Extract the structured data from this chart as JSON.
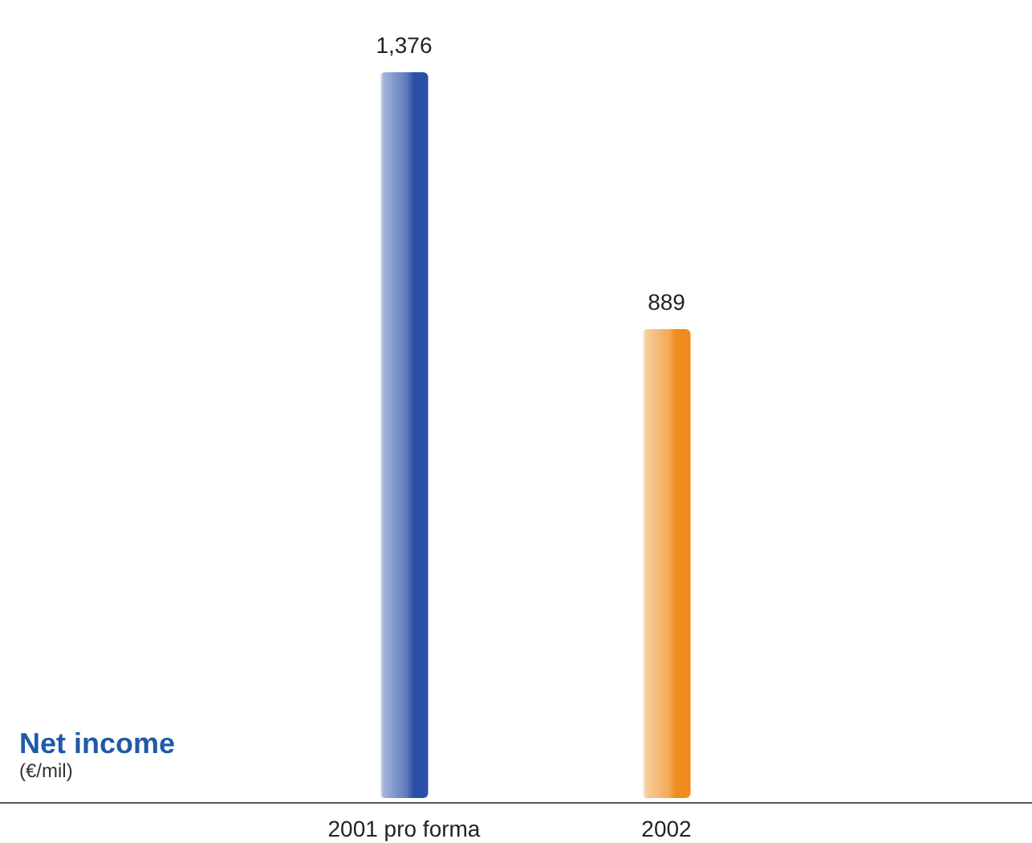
{
  "chart_data": {
    "type": "bar",
    "title": "Net income",
    "subtitle": "(€/mil)",
    "categories": [
      "2001 pro forma",
      "2002"
    ],
    "values": [
      1376,
      889
    ],
    "colors": [
      "#2a4fa6",
      "#ef8c1d"
    ],
    "value_labels": [
      "1,376",
      "889"
    ]
  }
}
